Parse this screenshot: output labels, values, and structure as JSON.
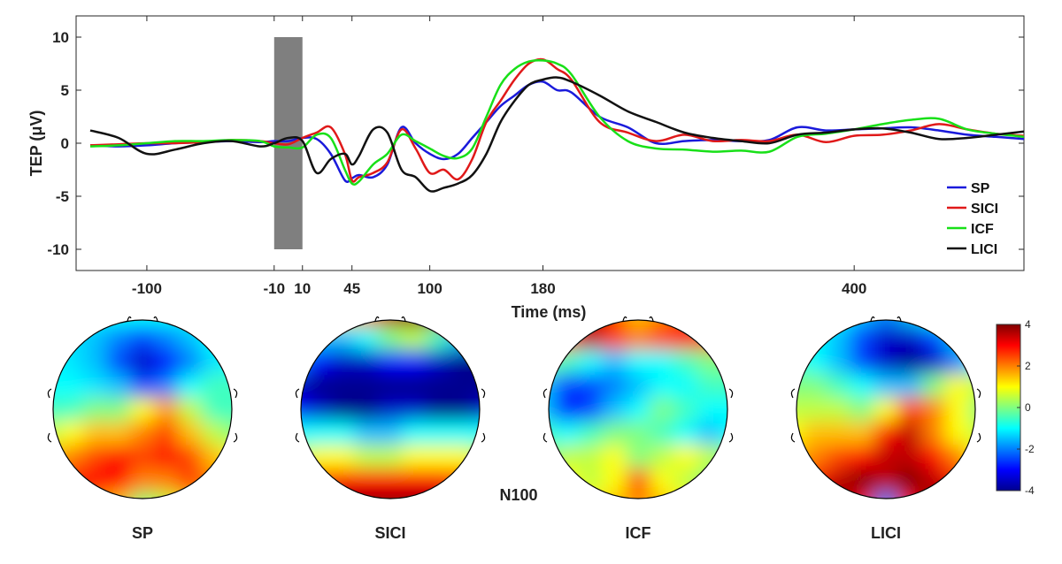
{
  "chart_data": [
    {
      "type": "line",
      "xlabel": "Time (ms)",
      "ylabel": "TEP (μV)",
      "xlim": [
        -150,
        520
      ],
      "ylim": [
        -12,
        12
      ],
      "xticks": [
        -100,
        -10,
        10,
        45,
        100,
        180,
        400
      ],
      "yticks": [
        -10,
        -5,
        0,
        5,
        10
      ],
      "grid": false,
      "legend_position": "bottom-right",
      "shaded_interval": {
        "x": [
          -10,
          10
        ],
        "y": [
          -10,
          10
        ],
        "color": "#7f7f7f"
      },
      "series": [
        {
          "name": "SP",
          "color": "#1a1adb",
          "x": [
            -140,
            -120,
            -100,
            -80,
            -60,
            -40,
            -20,
            -10,
            0,
            10,
            20,
            30,
            40,
            45,
            50,
            60,
            70,
            80,
            90,
            100,
            110,
            120,
            130,
            140,
            150,
            160,
            170,
            180,
            190,
            200,
            220,
            240,
            260,
            280,
            300,
            320,
            340,
            360,
            380,
            400,
            420,
            440,
            460,
            480,
            500,
            520
          ],
          "y": [
            -0.2,
            -0.3,
            -0.2,
            0,
            0.1,
            0.2,
            0.1,
            0.2,
            0.2,
            0.5,
            0.4,
            -1,
            -3.5,
            -3.3,
            -3,
            -3.2,
            -2,
            1.5,
            0,
            -1,
            -1.5,
            -1,
            0.5,
            2,
            3.5,
            4.5,
            5.5,
            5.8,
            5,
            4.8,
            2.5,
            1.5,
            0,
            0.2,
            0.3,
            0.2,
            0.3,
            1.5,
            1.2,
            1.3,
            1.4,
            1.5,
            1.2,
            0.8,
            0.6,
            0.4
          ]
        },
        {
          "name": "SICI",
          "color": "#e01919",
          "x": [
            -140,
            -120,
            -100,
            -80,
            -60,
            -40,
            -20,
            -10,
            0,
            10,
            20,
            30,
            40,
            45,
            50,
            60,
            70,
            80,
            90,
            100,
            110,
            120,
            130,
            140,
            150,
            160,
            170,
            180,
            190,
            200,
            220,
            240,
            260,
            280,
            300,
            320,
            340,
            360,
            380,
            400,
            420,
            440,
            460,
            480,
            500,
            520
          ],
          "y": [
            -0.2,
            -0.1,
            0,
            0,
            0.1,
            0.3,
            0.2,
            0,
            -0.1,
            0.5,
            1,
            1.5,
            -1,
            -3.5,
            -3.2,
            -2.8,
            -1.8,
            1.3,
            -0.5,
            -2.8,
            -2.5,
            -3.4,
            -1.5,
            2,
            4,
            6,
            7.5,
            7.9,
            7,
            6,
            2,
            1,
            0.2,
            0.8,
            0.2,
            0.3,
            0.2,
            0.8,
            0.1,
            0.7,
            0.8,
            1.2,
            1.8,
            1.3,
            0.9,
            0.7
          ]
        },
        {
          "name": "ICF",
          "color": "#18e018",
          "x": [
            -140,
            -120,
            -100,
            -80,
            -60,
            -40,
            -20,
            -10,
            0,
            10,
            20,
            30,
            40,
            45,
            50,
            60,
            70,
            80,
            90,
            100,
            110,
            120,
            130,
            140,
            150,
            160,
            170,
            180,
            190,
            200,
            220,
            240,
            260,
            280,
            300,
            320,
            340,
            360,
            380,
            400,
            420,
            440,
            460,
            480,
            500,
            520
          ],
          "y": [
            -0.3,
            -0.2,
            0,
            0.2,
            0.2,
            0.3,
            0.2,
            -0.3,
            -0.4,
            -0.4,
            0.8,
            0.5,
            -2.5,
            -3.8,
            -3.6,
            -2,
            -1,
            0.8,
            0.2,
            -0.5,
            -1.2,
            -1.4,
            -0.5,
            2.5,
            5.5,
            7,
            7.7,
            7.8,
            7.5,
            6.5,
            2.5,
            0.2,
            -0.5,
            -0.6,
            -0.8,
            -0.7,
            -0.8,
            0.6,
            0.9,
            1.3,
            1.8,
            2.2,
            2.3,
            1.3,
            0.9,
            0.6
          ]
        },
        {
          "name": "LICI",
          "color": "#111111",
          "x": [
            -140,
            -120,
            -100,
            -80,
            -60,
            -40,
            -20,
            -10,
            0,
            10,
            20,
            30,
            40,
            45,
            50,
            60,
            70,
            80,
            90,
            100,
            110,
            120,
            130,
            140,
            150,
            160,
            170,
            180,
            190,
            200,
            220,
            240,
            260,
            280,
            300,
            320,
            340,
            360,
            380,
            400,
            420,
            440,
            460,
            480,
            500,
            520
          ],
          "y": [
            1.2,
            0.5,
            -1,
            -0.6,
            0,
            0.2,
            -0.3,
            0,
            0.5,
            0.2,
            -2.8,
            -1.5,
            -1,
            -2,
            -1.2,
            1.3,
            1,
            -2.5,
            -3.2,
            -4.5,
            -4.2,
            -3.8,
            -3,
            -1,
            2,
            4,
            5.5,
            6,
            6.2,
            5.8,
            4.5,
            3,
            2,
            1,
            0.5,
            0.2,
            0,
            0.8,
            1,
            1.3,
            1.4,
            1,
            0.4,
            0.5,
            0.8,
            1.1
          ]
        }
      ]
    },
    {
      "type": "heatmap",
      "annotation": "N100",
      "colorbar": {
        "min": -4,
        "max": 4,
        "ticks": [
          4,
          2,
          0,
          -2,
          -4
        ]
      },
      "panels": [
        {
          "label": "SP",
          "grid": [
            [
              -1,
              -1,
              -1,
              -1,
              -1,
              -1,
              -1,
              -1,
              -1
            ],
            [
              -1,
              -1.2,
              -1.5,
              -2,
              -2.5,
              -2,
              -1.5,
              -1,
              -0.8
            ],
            [
              -1,
              -1.2,
              -1.5,
              -2.5,
              -3.5,
              -3,
              -2,
              -1.2,
              -1
            ],
            [
              -1,
              -1,
              -1.2,
              -1.5,
              -2.5,
              -2,
              -1,
              -0.5,
              -0.5
            ],
            [
              -0.5,
              -0.5,
              0,
              0,
              1,
              1.8,
              0.5,
              -0.5,
              -0.5
            ],
            [
              0.5,
              1,
              1.5,
              1.5,
              2,
              2.5,
              1.5,
              0.5,
              0
            ],
            [
              1.5,
              2,
              2.5,
              3,
              2.5,
              3,
              2.5,
              1.5,
              1
            ],
            [
              2.5,
              3,
              3,
              3,
              2,
              2,
              2.5,
              2,
              1.5
            ],
            [
              2,
              2.5,
              2,
              1.5,
              0,
              0.5,
              1.5,
              2,
              1.5
            ]
          ]
        },
        {
          "label": "SICI",
          "grid": [
            [
              0,
              0.5,
              1,
              2,
              3.5,
              4,
              3.5,
              2,
              1
            ],
            [
              -1,
              -1.5,
              -1.5,
              -1,
              0,
              0.5,
              -0.5,
              -1.5,
              -2
            ],
            [
              -2,
              -3,
              -3.5,
              -3.5,
              -3,
              -3,
              -3.5,
              -4,
              -4
            ],
            [
              -3.5,
              -4,
              -4,
              -4,
              -4,
              -4,
              -4,
              -4,
              -4
            ],
            [
              -3,
              -3.5,
              -4,
              -4,
              -3.5,
              -3.5,
              -4,
              -4,
              -3.5
            ],
            [
              -1,
              -1,
              -1,
              -1.5,
              -1.5,
              -1,
              -1,
              -1,
              -1
            ],
            [
              0.5,
              1,
              1,
              0.5,
              0.5,
              1,
              1,
              1,
              0.5
            ],
            [
              2,
              2.5,
              3,
              3,
              3,
              3,
              3,
              2.5,
              2
            ],
            [
              3,
              3.5,
              4,
              4,
              4,
              4,
              4,
              3.5,
              3
            ]
          ]
        },
        {
          "label": "ICF",
          "grid": [
            [
              2,
              3,
              3.5,
              2.5,
              1.5,
              2,
              2.5,
              2,
              1.5
            ],
            [
              1.5,
              2.5,
              3.5,
              2.5,
              2,
              2.5,
              3,
              2.5,
              1.5
            ],
            [
              0,
              -0.5,
              -1,
              -1.5,
              -1,
              -1,
              -0.5,
              0,
              0
            ],
            [
              -1.5,
              -2.5,
              -2.5,
              -2,
              -1.5,
              -1,
              -1,
              -0.5,
              -0.5
            ],
            [
              -1.5,
              -3,
              -2.5,
              -1.5,
              -1,
              0,
              -0.5,
              -1,
              -1
            ],
            [
              -0.5,
              -1,
              -0.5,
              0,
              0,
              -0.5,
              -1,
              -1.5,
              -1
            ],
            [
              0,
              0.5,
              0.5,
              1,
              0,
              0.5,
              1,
              0.5,
              0
            ],
            [
              0.5,
              1,
              0.5,
              1,
              2.5,
              1,
              0.5,
              0,
              0
            ],
            [
              1,
              1,
              1,
              1.5,
              2,
              1.5,
              1,
              0.5,
              0.5
            ]
          ]
        },
        {
          "label": "LICI",
          "grid": [
            [
              -1,
              -1,
              -1,
              -1.5,
              -2,
              -1.5,
              -1,
              -1,
              -1
            ],
            [
              -0.5,
              -1,
              -1.5,
              -2.5,
              -3.5,
              -3.5,
              -2.5,
              -1.5,
              -1
            ],
            [
              -0.5,
              -1,
              -1.5,
              -2.5,
              -3.5,
              -4,
              -3.5,
              -2,
              -1
            ],
            [
              0,
              0,
              -0.5,
              -1,
              -1.5,
              -1.5,
              0,
              1,
              0.5
            ],
            [
              0.5,
              0.5,
              0.5,
              0,
              1,
              2.5,
              2,
              1,
              0
            ],
            [
              1,
              1.5,
              1.5,
              1.5,
              3,
              3.5,
              2,
              1,
              0.5
            ],
            [
              1.5,
              2,
              2.5,
              3,
              3.5,
              3.5,
              3,
              2,
              1
            ],
            [
              2,
              3,
              3.5,
              4,
              3.5,
              4,
              3.5,
              3,
              2
            ],
            [
              2.5,
              3.5,
              4,
              3,
              -2,
              3,
              4,
              3.5,
              2.5
            ]
          ]
        }
      ]
    }
  ]
}
